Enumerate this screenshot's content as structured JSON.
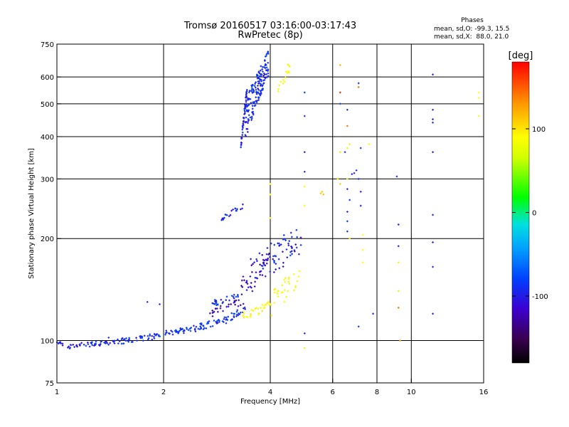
{
  "chart_data": {
    "type": "scatter",
    "title": "Tromsø 20160517 03:16:00-03:17:43",
    "subtitle": "RwPretec (8p)",
    "xlabel": "Frequency [MHz]",
    "ylabel": "Stationary phase Virtual Height [km]",
    "x_scale": "log",
    "y_scale": "log",
    "xlim": [
      1,
      16
    ],
    "ylim": [
      75,
      750
    ],
    "grid": true,
    "x_ticks": [
      1,
      2,
      4,
      6,
      8,
      10,
      16
    ],
    "x_tick_labels": [
      "1",
      "2",
      "4",
      "6",
      "8",
      "10",
      "16"
    ],
    "x_gridlines": [
      2,
      4,
      6,
      8,
      10
    ],
    "y_ticks": [
      75,
      100,
      200,
      300,
      400,
      500,
      600,
      750
    ],
    "y_tick_labels": [
      "75",
      "100",
      "200",
      "300",
      "400",
      "500",
      "600",
      "750"
    ],
    "y_gridlines": [
      100,
      200,
      300,
      400,
      500,
      600
    ],
    "phase_info": {
      "heading": "Phases",
      "line1": "mean, sd,O: -99.3, 15.5",
      "line2": "mean, sd,X:  88.0, 21.0"
    },
    "colorbar": {
      "label": "[deg]",
      "min": -180,
      "max": 180,
      "ticks": [
        100,
        0,
        -100
      ],
      "tick_labels": [
        "100",
        "0",
        "-100"
      ]
    },
    "segments": [
      {
        "x0": 1.0,
        "x1": 1.04,
        "y0": 98,
        "y1": 98,
        "n": 8,
        "phase": -115,
        "jy": 1.5
      },
      {
        "x0": 1.07,
        "x1": 1.45,
        "y0": 96,
        "y1": 99,
        "n": 45,
        "phase": -112,
        "jy": 1.5
      },
      {
        "x0": 1.45,
        "x1": 1.9,
        "y0": 99,
        "y1": 103,
        "n": 45,
        "phase": -108,
        "jy": 2
      },
      {
        "x0": 1.9,
        "x1": 2.4,
        "y0": 104,
        "y1": 108,
        "n": 40,
        "phase": -105,
        "jy": 2
      },
      {
        "x0": 2.4,
        "x1": 3.0,
        "y0": 108,
        "y1": 115,
        "n": 40,
        "phase": -105,
        "jy": 2.5
      },
      {
        "x0": 3.0,
        "x1": 3.45,
        "y0": 115,
        "y1": 125,
        "n": 25,
        "phase": -108,
        "jy": 3
      },
      {
        "x0": 3.35,
        "x1": 4.05,
        "y0": 118,
        "y1": 128,
        "n": 30,
        "phase": 100,
        "jy": 4
      },
      {
        "x0": 4.0,
        "x1": 4.9,
        "y0": 125,
        "y1": 160,
        "n": 30,
        "phase": 95,
        "jy": 12
      },
      {
        "x0": 3.5,
        "x1": 4.9,
        "y0": 155,
        "y1": 200,
        "n": 70,
        "phase": -112,
        "jy": 20
      },
      {
        "x0": 3.3,
        "x1": 4.0,
        "y0": 140,
        "y1": 175,
        "n": 40,
        "phase": -125,
        "jy": 15
      },
      {
        "x0": 2.7,
        "x1": 3.3,
        "y0": 128,
        "y1": 135,
        "n": 25,
        "phase": -105,
        "jy": 3
      },
      {
        "x0": 2.7,
        "x1": 3.3,
        "y0": 120,
        "y1": 130,
        "n": 25,
        "phase": -130,
        "jy": 3
      },
      {
        "x0": 2.9,
        "x1": 3.35,
        "y0": 228,
        "y1": 250,
        "n": 20,
        "phase": -112,
        "jy": 4
      },
      {
        "x0": 3.3,
        "x1": 3.45,
        "y0": 360,
        "y1": 560,
        "n": 50,
        "phase": -112,
        "jy": 15
      },
      {
        "x0": 3.4,
        "x1": 3.95,
        "y0": 450,
        "y1": 660,
        "n": 170,
        "phase": -108,
        "jy": 60
      },
      {
        "x0": 4.2,
        "x1": 4.6,
        "y0": 560,
        "y1": 650,
        "n": 15,
        "phase": 100,
        "jy": 30
      }
    ],
    "points": [
      [
        1.8,
        130,
        -110
      ],
      [
        1.95,
        128,
        -110
      ],
      [
        1.4,
        102,
        -110
      ],
      [
        5.0,
        540,
        -100
      ],
      [
        5.0,
        460,
        -110
      ],
      [
        5.0,
        360,
        -110
      ],
      [
        5.0,
        315,
        -112
      ],
      [
        5.0,
        285,
        95
      ],
      [
        5.0,
        250,
        100
      ],
      [
        5.0,
        105,
        -110
      ],
      [
        5.0,
        95,
        105
      ],
      [
        4.0,
        290,
        100
      ],
      [
        4.0,
        270,
        100
      ],
      [
        4.0,
        230,
        105
      ],
      [
        5.6,
        275,
        120
      ],
      [
        5.65,
        270,
        125
      ],
      [
        5.55,
        272,
        122
      ],
      [
        6.3,
        650,
        130
      ],
      [
        6.3,
        540,
        170
      ],
      [
        6.3,
        500,
        -100
      ],
      [
        6.3,
        360,
        110
      ],
      [
        6.2,
        300,
        110
      ],
      [
        6.3,
        290,
        120
      ],
      [
        6.6,
        480,
        -110
      ],
      [
        6.6,
        430,
        150
      ],
      [
        6.7,
        380,
        105
      ],
      [
        6.6,
        370,
        70
      ],
      [
        6.5,
        360,
        -105
      ],
      [
        6.8,
        310,
        -110
      ],
      [
        7.0,
        318,
        -110
      ],
      [
        6.9,
        312,
        -112
      ],
      [
        6.6,
        300,
        60
      ],
      [
        6.6,
        280,
        -110
      ],
      [
        6.7,
        260,
        -105
      ],
      [
        6.6,
        240,
        -110
      ],
      [
        6.6,
        225,
        -100
      ],
      [
        6.6,
        210,
        -105
      ],
      [
        6.7,
        200,
        110
      ],
      [
        7.1,
        575,
        -110
      ],
      [
        7.1,
        560,
        150
      ],
      [
        7.2,
        370,
        -105
      ],
      [
        7.1,
        300,
        -110
      ],
      [
        7.2,
        275,
        -110
      ],
      [
        7.2,
        250,
        -112
      ],
      [
        7.3,
        205,
        95
      ],
      [
        7.3,
        185,
        100
      ],
      [
        7.3,
        170,
        100
      ],
      [
        7.1,
        110,
        -110
      ],
      [
        7.6,
        380,
        100
      ],
      [
        7.8,
        120,
        -110
      ],
      [
        9.1,
        305,
        -110
      ],
      [
        9.2,
        220,
        -110
      ],
      [
        9.2,
        190,
        -112
      ],
      [
        9.2,
        170,
        105
      ],
      [
        9.2,
        140,
        60
      ],
      [
        9.2,
        125,
        150
      ],
      [
        9.3,
        100,
        140
      ],
      [
        11.5,
        610,
        -110
      ],
      [
        11.5,
        480,
        -110
      ],
      [
        11.5,
        450,
        -112
      ],
      [
        11.5,
        440,
        -110
      ],
      [
        11.5,
        360,
        -112
      ],
      [
        11.5,
        235,
        -110
      ],
      [
        11.5,
        195,
        -112
      ],
      [
        11.5,
        165,
        -110
      ],
      [
        11.5,
        120,
        -112
      ],
      [
        15.5,
        540,
        100
      ],
      [
        15.5,
        520,
        100
      ],
      [
        15.5,
        460,
        105
      ]
    ]
  }
}
